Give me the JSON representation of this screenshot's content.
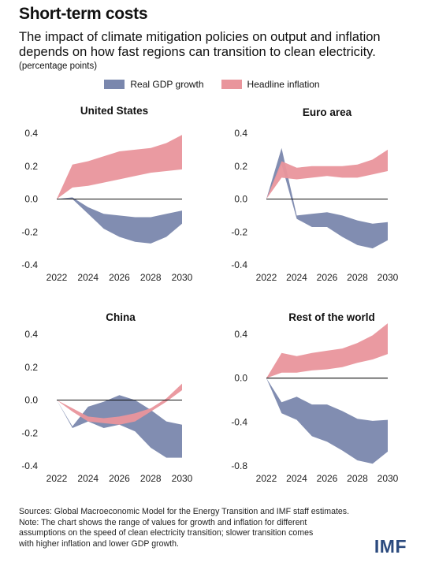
{
  "header": {
    "title": "Short-term costs",
    "subtitle": "The impact of climate mitigation policies on output and inflation depends on how fast regions can transition to clean electricity.",
    "unit": "(percentage points)"
  },
  "legend": [
    {
      "label": "Real GDP growth",
      "color": "#7a87ad"
    },
    {
      "label": "Headline inflation",
      "color": "#e9959c"
    }
  ],
  "chart_data": [
    {
      "type": "area",
      "title": "United States",
      "x": [
        2022,
        2023,
        2024,
        2025,
        2026,
        2027,
        2028,
        2029,
        2030
      ],
      "ylim": [
        -0.4,
        0.4
      ],
      "yticks": [
        0.4,
        0.2,
        0.0,
        -0.2,
        -0.4
      ],
      "ytick_labels": [
        "0.4",
        "0.2",
        "0.0",
        "-0.2",
        "-0.4"
      ],
      "xticks": [
        2022,
        2024,
        2026,
        2028,
        2030
      ],
      "series": [
        {
          "name": "Real GDP growth",
          "upper": [
            0,
            0.01,
            -0.05,
            -0.09,
            -0.1,
            -0.11,
            -0.11,
            -0.09,
            -0.07
          ],
          "lower": [
            0,
            0.0,
            -0.09,
            -0.18,
            -0.23,
            -0.26,
            -0.27,
            -0.23,
            -0.15
          ]
        },
        {
          "name": "Headline inflation",
          "upper": [
            0,
            0.21,
            0.23,
            0.26,
            0.29,
            0.3,
            0.31,
            0.34,
            0.39
          ],
          "lower": [
            0,
            0.07,
            0.08,
            0.1,
            0.12,
            0.14,
            0.16,
            0.17,
            0.18
          ]
        }
      ]
    },
    {
      "type": "area",
      "title": "Euro area",
      "x": [
        2022,
        2023,
        2024,
        2025,
        2026,
        2027,
        2028,
        2029,
        2030
      ],
      "ylim": [
        -0.4,
        0.4
      ],
      "yticks": [
        0.4,
        0.2,
        0.0,
        -0.2,
        -0.4
      ],
      "ytick_labels": [
        "0.4",
        "0.2",
        "0.0",
        "-0.2",
        "-0.4"
      ],
      "xticks": [
        2022,
        2024,
        2026,
        2028,
        2030
      ],
      "series": [
        {
          "name": "Real GDP growth",
          "upper": [
            0,
            0.31,
            -0.1,
            -0.09,
            -0.08,
            -0.1,
            -0.13,
            -0.15,
            -0.14
          ],
          "lower": [
            0,
            0.21,
            -0.12,
            -0.17,
            -0.17,
            -0.23,
            -0.28,
            -0.3,
            -0.25
          ]
        },
        {
          "name": "Headline inflation",
          "upper": [
            0,
            0.23,
            0.19,
            0.2,
            0.2,
            0.2,
            0.21,
            0.24,
            0.3
          ],
          "lower": [
            0,
            0.13,
            0.12,
            0.13,
            0.14,
            0.13,
            0.13,
            0.15,
            0.17
          ]
        }
      ]
    },
    {
      "type": "area",
      "title": "China",
      "x": [
        2022,
        2023,
        2024,
        2025,
        2026,
        2027,
        2028,
        2029,
        2030
      ],
      "ylim": [
        -0.4,
        0.4
      ],
      "yticks": [
        0.4,
        0.2,
        0.0,
        -0.2,
        -0.4
      ],
      "ytick_labels": [
        "0.4",
        "0.2",
        "0.0",
        "-0.2",
        "-0.4"
      ],
      "xticks": [
        2022,
        2024,
        2026,
        2028,
        2030
      ],
      "series": [
        {
          "name": "Real GDP growth",
          "upper": [
            0,
            -0.16,
            -0.04,
            -0.01,
            0.03,
            0.0,
            -0.06,
            -0.13,
            -0.15
          ],
          "lower": [
            0,
            -0.17,
            -0.13,
            -0.17,
            -0.15,
            -0.19,
            -0.29,
            -0.35,
            -0.35
          ]
        },
        {
          "name": "Headline inflation",
          "upper": [
            0,
            -0.05,
            -0.1,
            -0.11,
            -0.1,
            -0.08,
            -0.05,
            0.01,
            0.1
          ],
          "lower": [
            0,
            -0.07,
            -0.13,
            -0.14,
            -0.15,
            -0.13,
            -0.07,
            -0.01,
            0.06
          ]
        }
      ]
    },
    {
      "type": "area",
      "title": "Rest of the world",
      "x": [
        2022,
        2023,
        2024,
        2025,
        2026,
        2027,
        2028,
        2029,
        2030
      ],
      "ylim": [
        -0.8,
        0.4
      ],
      "yticks": [
        0.4,
        0.0,
        -0.4,
        -0.8
      ],
      "ytick_labels": [
        "0.4",
        "0.0",
        "-0.4",
        "-0.8"
      ],
      "xticks": [
        2022,
        2024,
        2026,
        2028,
        2030
      ],
      "series": [
        {
          "name": "Real GDP growth",
          "upper": [
            0,
            -0.22,
            -0.17,
            -0.24,
            -0.24,
            -0.3,
            -0.37,
            -0.39,
            -0.38
          ],
          "lower": [
            0,
            -0.32,
            -0.38,
            -0.53,
            -0.58,
            -0.66,
            -0.75,
            -0.78,
            -0.67
          ]
        },
        {
          "name": "Headline inflation",
          "upper": [
            0,
            0.23,
            0.2,
            0.23,
            0.25,
            0.27,
            0.32,
            0.39,
            0.5
          ],
          "lower": [
            0,
            0.05,
            0.05,
            0.07,
            0.08,
            0.1,
            0.14,
            0.17,
            0.22
          ]
        }
      ]
    }
  ],
  "notes": {
    "sources": "Sources: Global Macroeconomic Model for the Energy Transition and IMF staff estimates.",
    "note_line1": "Note: The chart shows the range of values for growth and inflation for different",
    "note_line2": "assumptions on the speed of clean electricity transition; slower transition comes",
    "note_line3": "with higher inflation and lower GDP growth."
  },
  "logo": {
    "text": "IMF",
    "color": "#2b4a7e"
  }
}
